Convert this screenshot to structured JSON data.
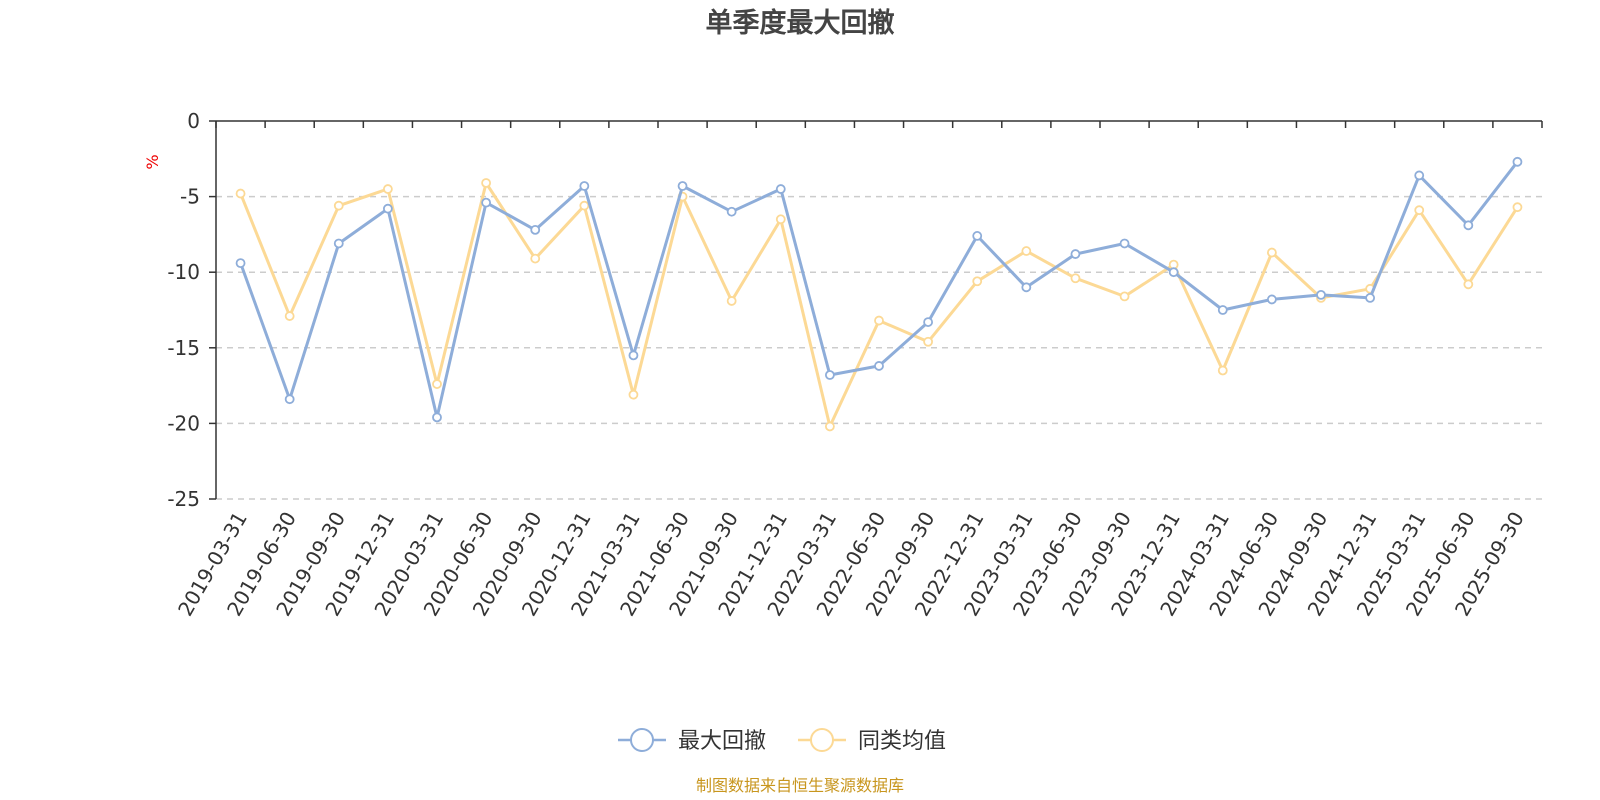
{
  "chart_data": {
    "type": "line",
    "title": "单季度最大回撤",
    "ylabel": "%",
    "ylim": [
      -25,
      0
    ],
    "yticks": [
      0,
      -5,
      -10,
      -15,
      -20,
      -25
    ],
    "categories": [
      "2019-03-31",
      "2019-06-30",
      "2019-09-30",
      "2019-12-31",
      "2020-03-31",
      "2020-06-30",
      "2020-09-30",
      "2020-12-31",
      "2021-03-31",
      "2021-06-30",
      "2021-09-30",
      "2021-12-31",
      "2022-03-31",
      "2022-06-30",
      "2022-09-30",
      "2022-12-31",
      "2023-03-31",
      "2023-06-30",
      "2023-09-30",
      "2023-12-31",
      "2024-03-31",
      "2024-06-30",
      "2024-09-30",
      "2024-12-31",
      "2025-03-31",
      "2025-06-30",
      "2025-09-30"
    ],
    "series": [
      {
        "name": "最大回撤",
        "color": "#8eadd9",
        "values": [
          -9.4,
          -18.4,
          -8.1,
          -5.8,
          -19.6,
          -5.4,
          -7.2,
          -4.3,
          -15.5,
          -4.3,
          -6.0,
          -4.5,
          -16.8,
          -16.2,
          -13.3,
          -7.6,
          -11.0,
          -8.8,
          -8.1,
          -10.0,
          -12.5,
          -11.8,
          -11.5,
          -11.7,
          -3.6,
          -6.9,
          -2.7
        ]
      },
      {
        "name": "同类均值",
        "color": "#fcd995",
        "values": [
          -4.8,
          -12.9,
          -5.6,
          -4.5,
          -17.4,
          -4.1,
          -9.1,
          -5.6,
          -18.1,
          -5.0,
          -11.9,
          -6.5,
          -20.2,
          -13.2,
          -14.6,
          -10.6,
          -8.6,
          -10.4,
          -11.6,
          -9.5,
          -16.5,
          -8.7,
          -11.7,
          -11.1,
          -5.9,
          -10.8,
          -5.7
        ]
      }
    ],
    "legend": "bottom-center",
    "grid": true,
    "source_text": "制图数据来自恒生聚源数据库"
  }
}
